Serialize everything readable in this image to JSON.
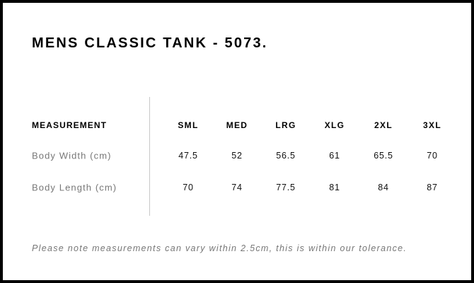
{
  "title": "MENS CLASSIC TANK - 5073.",
  "table": {
    "header_label": "MEASUREMENT",
    "sizes": [
      "SML",
      "MED",
      "LRG",
      "XLG",
      "2XL",
      "3XL"
    ],
    "rows": [
      {
        "label": "Body Width (cm)",
        "values": [
          "47.5",
          "52",
          "56.5",
          "61",
          "65.5",
          "70"
        ]
      },
      {
        "label": "Body Length (cm)",
        "values": [
          "70",
          "74",
          "77.5",
          "81",
          "84",
          "87"
        ]
      }
    ]
  },
  "note": "Please note measurements can vary within 2.5cm, this is within our tolerance.",
  "colors": {
    "border": "#000000",
    "label_text": "#777777",
    "divider": "#c8c8c8"
  }
}
